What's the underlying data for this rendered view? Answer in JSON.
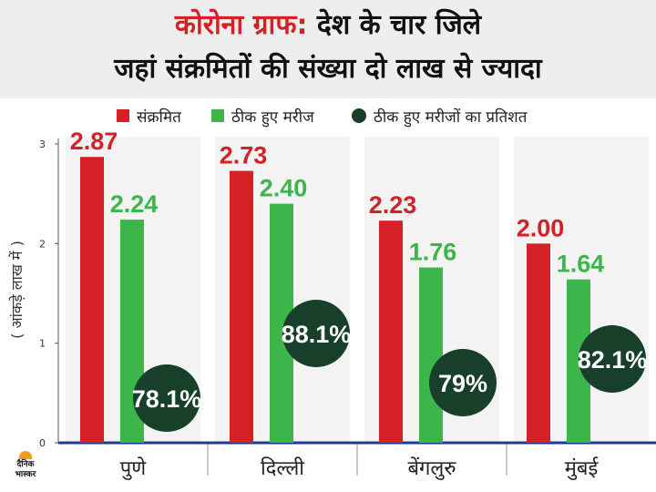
{
  "title": {
    "accent": "कोरोना ग्राफ:",
    "line1_rest": " देश के चार जिले",
    "line2": "जहां संक्रमितों की संख्या दो लाख से ज्यादा"
  },
  "legend": [
    {
      "label": "संक्रमित",
      "color": "#d62027",
      "shape": "square"
    },
    {
      "label": "ठीक हुए मरीज",
      "color": "#3cb54a",
      "shape": "square"
    },
    {
      "label": "ठीक हुए मरीजों का प्रतिशत",
      "color": "#173f2a",
      "shape": "circle"
    }
  ],
  "logo": {
    "line1": "दैनिक",
    "line2": "भास्कर"
  },
  "chart_data": {
    "type": "bar",
    "categories": [
      "पुणे",
      "दिल्ली",
      "बेंगलुरु",
      "मुंबई"
    ],
    "series": [
      {
        "name": "संक्रमित",
        "values": [
          2.87,
          2.73,
          2.23,
          2.0
        ],
        "labels": [
          "2.87",
          "2.73",
          "2.23",
          "2.00"
        ],
        "color": "#d62027"
      },
      {
        "name": "ठीक हुए मरीज",
        "values": [
          2.24,
          2.4,
          1.76,
          1.64
        ],
        "labels": [
          "2.24",
          "2.40",
          "1.76",
          "1.64"
        ],
        "color": "#3cb54a"
      }
    ],
    "recovery_rate": {
      "name": "ठीक हुए मरीजों का प्रतिशत",
      "labels": [
        "78.1%",
        "88.1%",
        "79%",
        "82.1%"
      ],
      "color": "#173f2a"
    },
    "ylabel": "( आंकड़े लाख में )",
    "ylim": [
      0,
      3
    ],
    "yticks": [
      "0",
      "1",
      "2",
      "3"
    ],
    "grid": false
  }
}
